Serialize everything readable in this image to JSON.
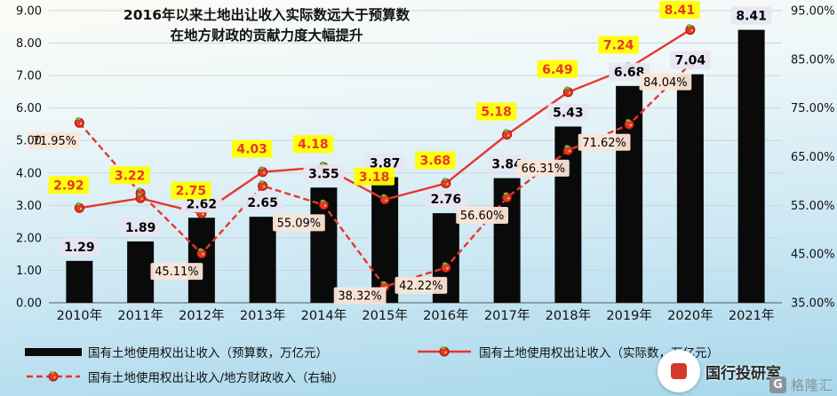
{
  "title": {
    "line1": "2016年以来土地出让收入实际数远大于预算数",
    "line2": "在地方财政的贡献力度大幅提升"
  },
  "chart_data": {
    "type": "combo",
    "categories": [
      "2010年",
      "2011年",
      "2012年",
      "2013年",
      "2014年",
      "2015年",
      "2016年",
      "2017年",
      "2018年",
      "2019年",
      "2020年",
      "2021年"
    ],
    "left_axis": {
      "min": 0,
      "max": 9,
      "tick_values": [
        9,
        8,
        7,
        6,
        5,
        4,
        3,
        2,
        1,
        0
      ],
      "tick_labels": [
        "9.00",
        "8.00",
        "7.00",
        "6.00",
        "5.00",
        "4.00",
        "3.00",
        "2.00",
        "1.00",
        "0.00"
      ]
    },
    "right_axis": {
      "min": 35,
      "max": 95,
      "tick_values": [
        95,
        85,
        75,
        65,
        55,
        45,
        35
      ],
      "tick_labels": [
        "95.00%",
        "85.00%",
        "75.00%",
        "65.00%",
        "55.00%",
        "45.00%",
        "35.00%"
      ]
    },
    "grid": true,
    "series": [
      {
        "name": "国有土地使用权出让收入（预算数，万亿元）",
        "type": "bar",
        "axis": "left",
        "color": "#0a0a0a",
        "values": [
          1.29,
          1.89,
          2.62,
          2.65,
          3.55,
          3.87,
          2.76,
          3.84,
          5.43,
          6.68,
          7.04,
          8.41
        ],
        "labels": [
          "1.29",
          "1.89",
          "2.62",
          "2.65",
          "3.55",
          "3.87",
          "2.76",
          "3.84",
          "5.43",
          "6.68",
          "7.04",
          "8.41"
        ],
        "label_bg": "#e7e6f2",
        "label_color": "#000000"
      },
      {
        "name": "国有土地使用权出让收入（实际数，万亿元）",
        "type": "line",
        "axis": "left",
        "color": "#e8372c",
        "values": [
          2.92,
          3.22,
          2.75,
          4.03,
          4.18,
          3.18,
          3.68,
          5.18,
          6.49,
          7.24,
          8.41,
          null
        ],
        "labels": [
          "2.92",
          "3.22",
          "2.75",
          "4.03",
          "4.18",
          "3.18",
          "3.68",
          "5.18",
          "6.49",
          "7.24",
          "8.41",
          null
        ],
        "label_bg": "#ffff00",
        "label_color": "#e8372c"
      },
      {
        "name": "国有土地使用权出让收入/地方财政收入（右轴）",
        "type": "line-dashed",
        "axis": "right",
        "color": "#e8372c",
        "values": [
          71.95,
          57.5,
          45.11,
          59,
          55.09,
          38.32,
          42.22,
          56.6,
          66.31,
          71.62,
          84.04,
          null
        ],
        "labels": [
          "71.95%",
          null,
          "45.11%",
          null,
          "55.09%",
          "38.32%",
          "42.22%",
          "56.60%",
          "66.31%",
          "71.62%",
          "84.04%",
          null
        ],
        "estimated_indices": [
          1,
          3
        ],
        "label_bg": "#fbe5d6",
        "label_color": "#000000"
      }
    ]
  },
  "legend": {
    "items": [
      {
        "label": "国有土地使用权出让收入（预算数，万亿元）"
      },
      {
        "label": "国有土地使用权出让收入（实际数，万亿元）"
      },
      {
        "label": "国有土地使用权出让收入/地方财政收入（右轴）"
      }
    ]
  },
  "watermark": {
    "text": "国行投研室"
  },
  "logo": {
    "glyph": "G",
    "text": "格隆汇"
  }
}
